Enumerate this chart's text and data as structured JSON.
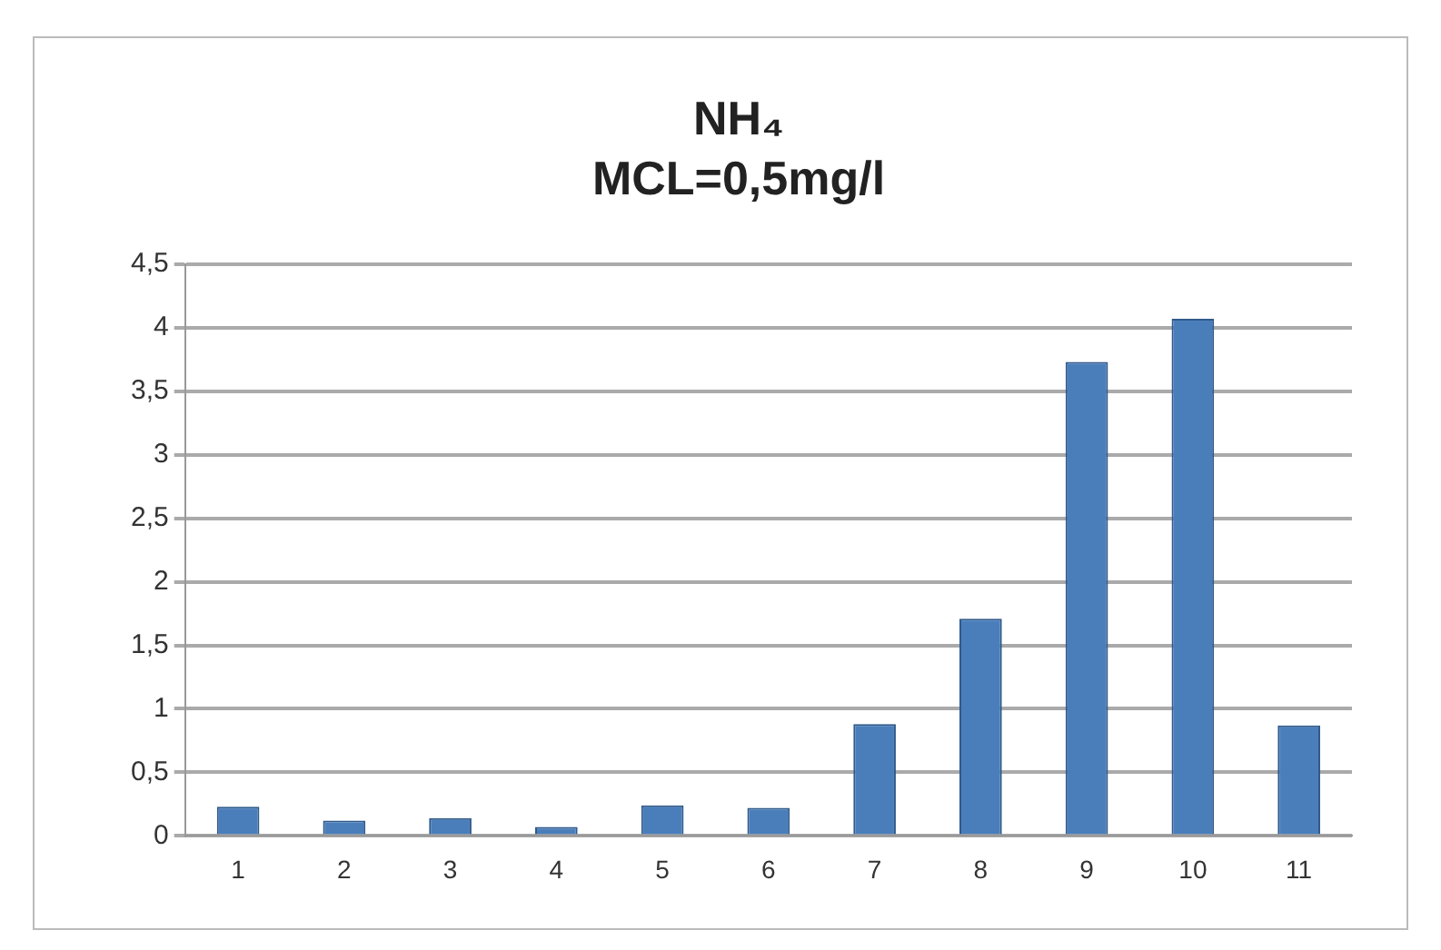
{
  "chart_data": {
    "type": "bar",
    "title": "NH₄",
    "subtitle": "MCL=0,5mg/l",
    "categories": [
      "1",
      "2",
      "3",
      "4",
      "5",
      "6",
      "7",
      "8",
      "9",
      "10",
      "11"
    ],
    "values": [
      0.23,
      0.12,
      0.14,
      0.07,
      0.24,
      0.22,
      0.88,
      1.71,
      3.73,
      4.07,
      0.87
    ],
    "color": "#4a7ebb",
    "ylim": [
      0,
      4.5
    ],
    "yticks": [
      0,
      {
        "value": 0.5,
        "label": "0,5"
      },
      1,
      {
        "value": 1.5,
        "label": "1,5"
      },
      2,
      {
        "value": 2.5,
        "label": "2,5"
      },
      3,
      {
        "value": 3.5,
        "label": "3,5"
      },
      4,
      {
        "value": 4.5,
        "label": "4,5"
      }
    ],
    "grid": "y"
  }
}
